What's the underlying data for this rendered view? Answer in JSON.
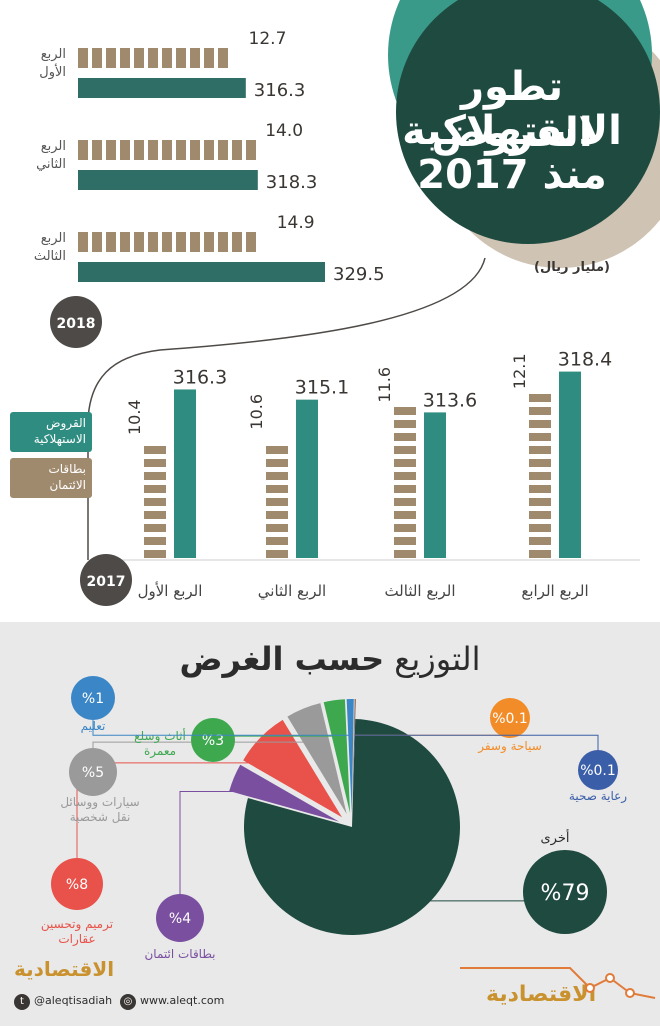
{
  "title": {
    "line1": "تطور القروض",
    "line2": "الاستهلاكية",
    "line3": "منذ 2017"
  },
  "unit": "(مليار ريال)",
  "legend": {
    "consumer_loans": "القروض الاستهلاكية",
    "credit_cards": "بطاقات الائتمان"
  },
  "colors": {
    "loans": "#2e8c80",
    "cards": "#a08a6e",
    "dark": "#1f4a40",
    "badge": "#4e4a47"
  },
  "chart_data": [
    {
      "type": "bar",
      "year": "2018",
      "orientation": "horizontal",
      "categories": [
        "الربع الأول",
        "الربع الثاني",
        "الربع الثالث"
      ],
      "series": [
        {
          "name": "بطاقات الائتمان",
          "values": [
            12.7,
            14.0,
            14.9
          ],
          "labels": [
            "12.7",
            "14.0",
            "14.9"
          ]
        },
        {
          "name": "القروض الاستهلاكية",
          "values": [
            316.3,
            318.3,
            329.5
          ],
          "labels": [
            "316.3",
            "318.3",
            "329.5"
          ]
        }
      ]
    },
    {
      "type": "bar",
      "year": "2017",
      "orientation": "vertical",
      "categories": [
        "الربع الأول",
        "الربع الثاني",
        "الربع الثالث",
        "الربع الرابع"
      ],
      "series": [
        {
          "name": "بطاقات الائتمان",
          "values": [
            10.4,
            10.6,
            11.6,
            12.1
          ],
          "labels": [
            "10.4",
            "10.6",
            "11.6",
            "12.1"
          ]
        },
        {
          "name": "القروض الاستهلاكية",
          "values": [
            316.3,
            315.1,
            313.6,
            318.4
          ],
          "labels": [
            "316.3",
            "315.1",
            "313.6",
            "318.4"
          ]
        }
      ]
    },
    {
      "type": "pie",
      "title": "التوزيع حسب الغرض",
      "slices": [
        {
          "label": "أخرى",
          "value": 79,
          "display": "%79",
          "color": "#1f4a40"
        },
        {
          "label": "بطاقات ائتمان",
          "value": 4,
          "display": "%4",
          "color": "#7a4fa0"
        },
        {
          "label": "ترميم وتحسين عقارات",
          "value": 8,
          "display": "%8",
          "color": "#e8524a"
        },
        {
          "label": "سيارات ووسائل نقل شخصية",
          "value": 5,
          "display": "%5",
          "color": "#9a9a9a"
        },
        {
          "label": "أثاث وسلع معمرة",
          "value": 3,
          "display": "%3",
          "color": "#3ea84f"
        },
        {
          "label": "تعليم",
          "value": 1,
          "display": "%1",
          "color": "#3b86c6"
        },
        {
          "label": "سياحة وسفر",
          "value": 0.1,
          "display": "%0.1",
          "color": "#f28c28"
        },
        {
          "label": "رعاية صحية",
          "value": 0.1,
          "display": "%0.1",
          "color": "#3b5ea8"
        }
      ]
    }
  ],
  "pie_title": {
    "light": "التوزيع",
    "bold": "حسب الغرض"
  },
  "footer": {
    "brand": "الاقتصادية",
    "twitter": "@aleqtisadiah",
    "website": "www.aleqt.com",
    "brand2": "الاقتصادية"
  }
}
